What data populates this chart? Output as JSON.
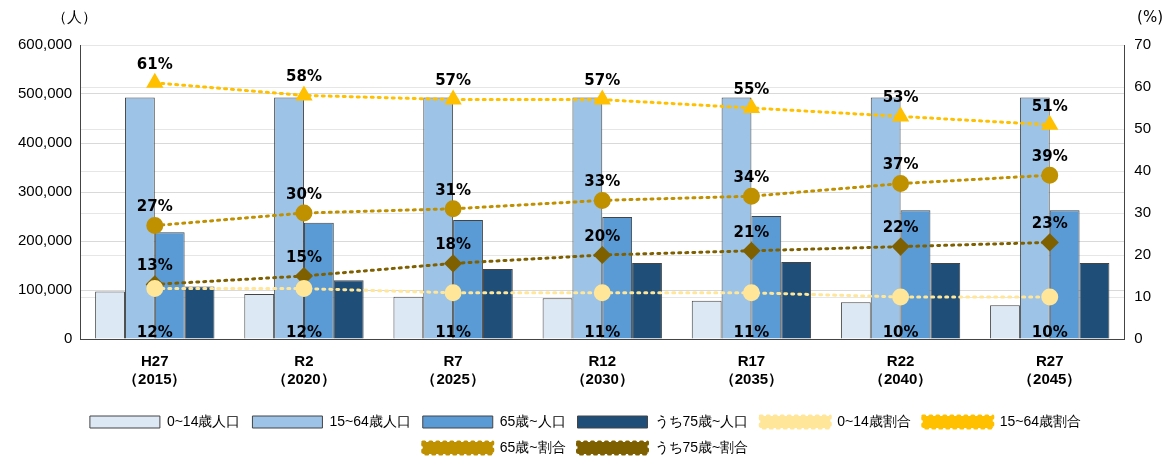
{
  "chart_data": {
    "type": "bar",
    "ylabel": "（人）",
    "y2label": "(%)",
    "categories": [
      "H27 （2015）",
      "R2 （2020）",
      "R7 （2025）",
      "R12 （2030）",
      "R17 （2035）",
      "R22 （2040）",
      "R27 （2045）"
    ],
    "series": [
      {
        "name": "0~14歳人口",
        "color": "#dde8f5",
        "values": [
          97000,
          92000,
          86000,
          83000,
          78000,
          75000,
          69000
        ]
      },
      {
        "name": "15~64歳人口",
        "color": "#9dc3e6",
        "values": [
          493000,
          493000,
          493000,
          493000,
          493000,
          493000,
          493000
        ]
      },
      {
        "name": "65歳~人口",
        "color": "#5b9bd5",
        "values": [
          218000,
          237000,
          243000,
          249000,
          251000,
          263000,
          263000
        ]
      },
      {
        "name": "うち75歳~人口",
        "color": "#1f4e79",
        "values": [
          107000,
          120000,
          143000,
          155000,
          157000,
          155000,
          155000
        ]
      },
      {
        "name": "0~14歳割合",
        "type": "line",
        "axis": "y2",
        "color": "#ffe699",
        "marker": "circle",
        "line_style": "dotted",
        "values": [
          12,
          12,
          11,
          11,
          11,
          10,
          10
        ],
        "value_labels": [
          "12%",
          "12%",
          "11%",
          "11%",
          "11%",
          "10%",
          "10%"
        ]
      },
      {
        "name": "15~64歳割合",
        "type": "line",
        "axis": "y2",
        "color": "#ffc000",
        "marker": "triangle",
        "line_style": "dotted",
        "values": [
          61,
          58,
          57,
          57,
          55,
          53,
          51
        ],
        "value_labels": [
          "61%",
          "58%",
          "57%",
          "57%",
          "55%",
          "53%",
          "51%"
        ]
      },
      {
        "name": "65歳~割合",
        "type": "line",
        "axis": "y2",
        "color": "#bf9000",
        "marker": "circle",
        "line_style": "dotted",
        "values": [
          27,
          30,
          31,
          33,
          34,
          37,
          39
        ],
        "value_labels": [
          "27%",
          "30%",
          "31%",
          "33%",
          "34%",
          "37%",
          "39%"
        ]
      },
      {
        "name": "うち75歳~割合",
        "type": "line",
        "axis": "y2",
        "color": "#7f6000",
        "marker": "diamond",
        "line_style": "dotted",
        "values": [
          13,
          15,
          18,
          20,
          21,
          22,
          23
        ],
        "value_labels": [
          "13%",
          "15%",
          "18%",
          "20%",
          "21%",
          "22%",
          "23%"
        ]
      }
    ],
    "ylim": [
      0,
      600000
    ],
    "yticks": [
      0,
      {
        "value": 100000,
        "label": "100,000"
      },
      {
        "value": 200000,
        "label": "200,000"
      },
      {
        "value": 300000,
        "label": "300,000"
      },
      {
        "value": 400000,
        "label": "400,000"
      },
      {
        "value": 500000,
        "label": "500,000"
      },
      {
        "value": 600000,
        "label": "600,000"
      }
    ],
    "y2lim": [
      0,
      70
    ],
    "y2ticks": [
      0,
      10,
      20,
      30,
      40,
      50,
      60,
      70
    ],
    "grid": "y",
    "legend": "bottom"
  }
}
